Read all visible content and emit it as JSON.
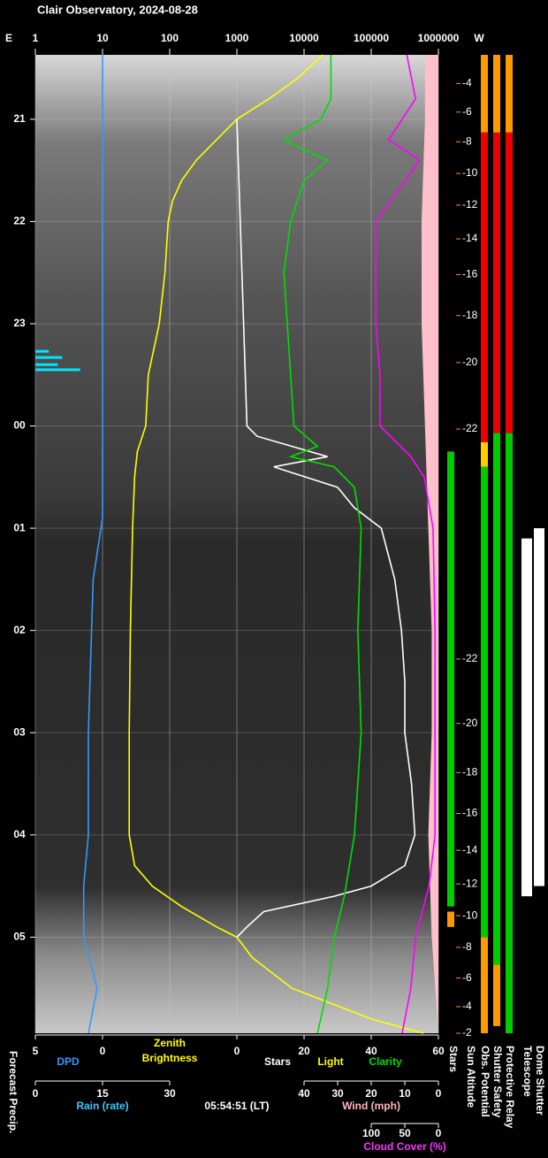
{
  "chart_data": {
    "type": "observatory",
    "title": "Clair Observatory, 2024-08-28",
    "east": "E",
    "west": "W",
    "ylim": [
      20.37,
      29.94
    ],
    "yticks": [
      21,
      22,
      23,
      {
        "value": 24,
        "label": "00"
      },
      {
        "value": 25,
        "label": "01"
      },
      {
        "value": 26,
        "label": "02"
      },
      {
        "value": 27,
        "label": "03"
      },
      {
        "value": 28,
        "label": "04"
      },
      {
        "value": 29,
        "label": "05"
      }
    ],
    "xlim": [
      1,
      1000000
    ],
    "log_x": true,
    "xticks": [
      1,
      10,
      100,
      1000,
      10000,
      100000,
      1000000
    ],
    "grid": true,
    "axes": {
      "dpd": {
        "label": "DPD",
        "color": "#3399ff",
        "lim": [
          5,
          0
        ],
        "ticks": [
          5,
          0
        ]
      },
      "stars": {
        "lim": [
          0,
          60
        ],
        "ticks": [
          0,
          20,
          40,
          60
        ]
      },
      "rain": {
        "label": "Rain (rate)",
        "color": "#33ccff",
        "lim": [
          0,
          30
        ],
        "ticks": [
          0,
          15,
          30
        ]
      },
      "wind": {
        "label": "Wind (mph)",
        "color": "#ffb6c1",
        "lim": [
          40,
          0
        ],
        "ticks": [
          40,
          30,
          20,
          10,
          0
        ]
      },
      "cloud": {
        "label": "Cloud Cover (%)",
        "color": "#ff33ff",
        "lim": [
          100,
          0
        ],
        "ticks": [
          100,
          50,
          0
        ]
      }
    },
    "labels": {
      "zenith": [
        "Zenith",
        "Brightness"
      ],
      "stars": "Stars",
      "light": "Light",
      "clarity": "Clarity",
      "time": "05:54:51 (LT)",
      "precip": "Forecast Precip."
    },
    "series": [
      {
        "kind": "area",
        "axis": "wind",
        "color": "#ffc0cb",
        "x": [
          20.37,
          21,
          22,
          23,
          24,
          25,
          26,
          27,
          28,
          29,
          29.94
        ],
        "values": [
          4,
          4,
          5,
          5,
          4,
          3,
          2,
          2,
          3,
          2,
          0
        ]
      },
      {
        "kind": "line",
        "axis": "dpd",
        "color": "#3399ff",
        "x": [
          20.37,
          24.9,
          25.5,
          27,
          28,
          28.5,
          29,
          29.5,
          29.94
        ],
        "values": [
          0,
          0,
          0.7,
          1.05,
          1.05,
          1.4,
          1.4,
          0.4,
          1.05
        ]
      },
      {
        "kind": "bar",
        "axis": "rain",
        "color": "#00e5ff",
        "x": [
          23.27,
          23.33,
          23.4,
          23.45
        ],
        "values": [
          3,
          6,
          5,
          10
        ]
      },
      {
        "kind": "line",
        "axis": "x",
        "color": "#ffff00",
        "x": [
          20.37,
          20.6,
          20.8,
          21,
          21.2,
          21.4,
          21.6,
          21.8,
          22,
          22.5,
          23,
          23.5,
          24,
          24.25,
          24.5,
          25,
          26,
          27,
          28,
          28.3,
          28.5,
          28.7,
          28.9,
          29,
          29.2,
          29.5,
          29.8,
          29.94
        ],
        "values": [
          19000,
          8000,
          3000,
          1000,
          500,
          250,
          150,
          110,
          95,
          85,
          70,
          48,
          44,
          33,
          30,
          28,
          26,
          25,
          25,
          30,
          55,
          150,
          500,
          1000,
          1700,
          6600,
          100000,
          600000
        ]
      },
      {
        "kind": "line",
        "axis": "stars",
        "color": "#ffffff",
        "x": [
          21,
          22,
          23,
          24,
          24.1,
          24.3,
          24.4,
          24.6,
          24.8,
          25,
          25.5,
          26,
          26.5,
          27,
          27.5,
          28,
          28.3,
          28.5,
          28.6,
          28.75,
          28.9,
          29
        ],
        "values": [
          0,
          1,
          2,
          3,
          6,
          27,
          11,
          30,
          35,
          43,
          47,
          49,
          50,
          50,
          52,
          53,
          50,
          40,
          29,
          8,
          3,
          0
        ]
      },
      {
        "kind": "line",
        "axis": "stars",
        "color": "#00dd00",
        "x": [
          20.37,
          20.8,
          21,
          21.2,
          21.3,
          21.4,
          21.6,
          22,
          22.5,
          23,
          23.5,
          24,
          24.2,
          24.3,
          24.4,
          24.6,
          25,
          26,
          27,
          27.5,
          28,
          28.6,
          29,
          29.5,
          29.94
        ],
        "values": [
          28,
          28,
          25,
          14,
          20,
          27,
          20,
          16,
          14,
          15,
          16,
          17,
          24,
          16,
          29,
          35,
          37,
          36,
          37,
          36,
          35,
          32,
          29,
          27,
          24
        ]
      },
      {
        "kind": "line",
        "axis": "cloud",
        "color": "#ff00ff",
        "x": [
          20.37,
          20.8,
          21.2,
          21.4,
          22,
          23,
          23.5,
          24,
          24.3,
          24.5,
          25,
          26,
          27,
          28,
          28.5,
          29,
          29.5,
          29.94
        ],
        "values": [
          47,
          34,
          74,
          28,
          93,
          93,
          87,
          87,
          41,
          21,
          8,
          5,
          5,
          5,
          14,
          34,
          41,
          54
        ]
      }
    ],
    "sun_altitude": {
      "label": "Sun Altitude",
      "color": "#ff9900",
      "ticks": [
        {
          "time": 20.65,
          "altitude": -4
        },
        {
          "time": 20.93,
          "altitude": -6
        },
        {
          "time": 21.22,
          "altitude": -8
        },
        {
          "time": 21.53,
          "altitude": -10
        },
        {
          "time": 21.84,
          "altitude": -12
        },
        {
          "time": 22.17,
          "altitude": -14
        },
        {
          "time": 22.52,
          "altitude": -16
        },
        {
          "time": 22.92,
          "altitude": -18
        },
        {
          "time": 23.38,
          "altitude": -20
        },
        {
          "time": 24.03,
          "altitude": -22
        },
        {
          "time": 26.28,
          "altitude": -22
        },
        {
          "time": 26.91,
          "altitude": -20
        },
        {
          "time": 27.39,
          "altitude": -18
        },
        {
          "time": 27.79,
          "altitude": -16
        },
        {
          "time": 28.15,
          "altitude": -14
        },
        {
          "time": 28.48,
          "altitude": -12
        },
        {
          "time": 28.79,
          "altitude": -10
        },
        {
          "time": 29.1,
          "altitude": -8
        },
        {
          "time": 29.4,
          "altitude": -6
        },
        {
          "time": 29.68,
          "altitude": -4
        },
        {
          "time": 29.94,
          "altitude": -2
        }
      ]
    },
    "status": [
      {
        "name": "Stars",
        "segments": [
          {
            "from": 24.25,
            "to": 28.7,
            "color": "#00cc00"
          },
          {
            "from": 28.75,
            "to": 28.9,
            "color": "#ff9900"
          }
        ]
      },
      {
        "name": "Obs. Potential",
        "segments": [
          {
            "from": 20.37,
            "to": 21.13,
            "color": "#ff9900"
          },
          {
            "from": 21.13,
            "to": 24.16,
            "color": "#ee0000"
          },
          {
            "from": 24.16,
            "to": 24.4,
            "color": "#ffcc00"
          },
          {
            "from": 24.4,
            "to": 29.0,
            "color": "#00cc00"
          },
          {
            "from": 29.0,
            "to": 29.94,
            "color": "#ff9900"
          }
        ]
      },
      {
        "name": "Shutter Safety",
        "segments": [
          {
            "from": 20.37,
            "to": 21.13,
            "color": "#ff9900"
          },
          {
            "from": 21.13,
            "to": 24.07,
            "color": "#ee0000"
          },
          {
            "from": 24.07,
            "to": 29.27,
            "color": "#00cc00"
          },
          {
            "from": 29.27,
            "to": 29.87,
            "color": "#ff9900"
          }
        ]
      },
      {
        "name": "Protective Relay",
        "segments": [
          {
            "from": 20.37,
            "to": 21.13,
            "color": "#ff9900"
          },
          {
            "from": 21.13,
            "to": 24.07,
            "color": "#ee0000"
          },
          {
            "from": 24.07,
            "to": 29.94,
            "color": "#00cc00"
          }
        ]
      },
      {
        "name": "Telescope",
        "segments": [
          {
            "from": 25.1,
            "to": 28.6,
            "color": "#ffffff"
          }
        ]
      },
      {
        "name": "Dome Shutter",
        "segments": [
          {
            "from": 25.0,
            "to": 28.5,
            "color": "#ffffff"
          }
        ]
      }
    ]
  }
}
